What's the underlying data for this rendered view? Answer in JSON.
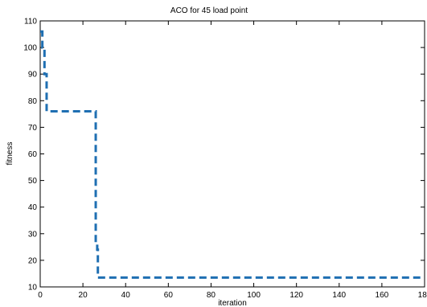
{
  "chart_data": {
    "type": "line",
    "title": "ACO for 45 load point",
    "xlabel": "iteration",
    "ylabel": "fitness",
    "xlim": [
      0,
      180
    ],
    "ylim": [
      10,
      110
    ],
    "xticks": [
      0,
      20,
      40,
      60,
      80,
      100,
      120,
      140,
      160,
      180
    ],
    "yticks": [
      10,
      20,
      30,
      40,
      50,
      60,
      70,
      80,
      90,
      100,
      110
    ],
    "grid": false,
    "series": [
      {
        "color": "#1f6fb2",
        "line_style": "dashed",
        "x": [
          0,
          1,
          1,
          2,
          2,
          3,
          3,
          26,
          26,
          26.7,
          26.7,
          27,
          27,
          178
        ],
        "y": [
          106,
          106,
          100,
          100,
          90,
          90,
          76,
          76,
          26,
          26,
          24,
          24,
          13.5,
          13.5
        ]
      }
    ]
  }
}
